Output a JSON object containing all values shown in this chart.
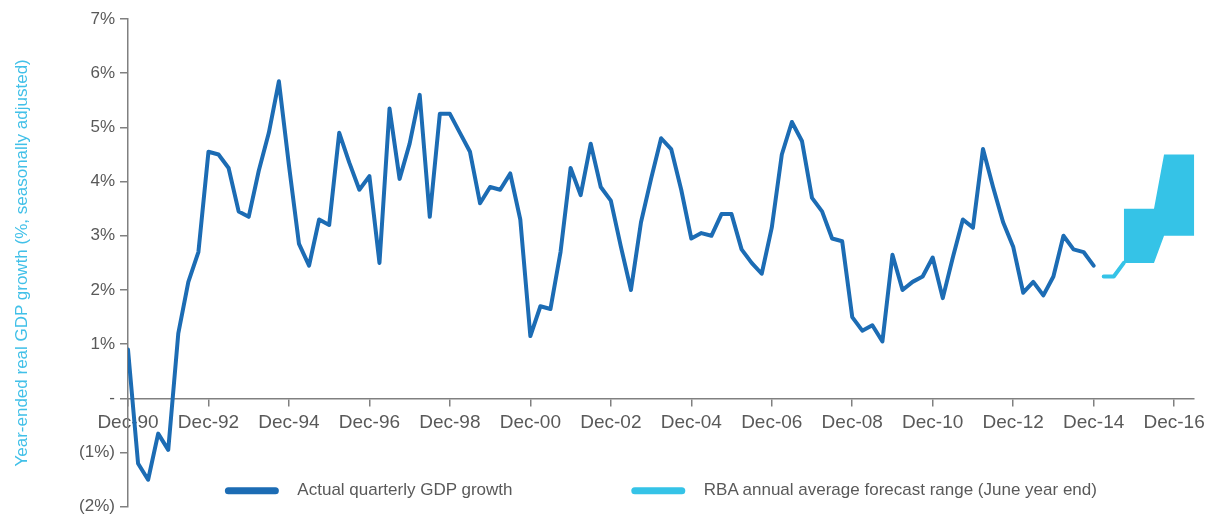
{
  "chart_data": {
    "type": "line",
    "ylabel": "Year-ended real GDP growth (%, seasonally adjusted)",
    "xlim": [
      "1990-12",
      "2017-06"
    ],
    "xticks": [
      {
        "value": "1990-12",
        "label": "Dec-90"
      },
      {
        "value": "1992-12",
        "label": "Dec-92"
      },
      {
        "value": "1994-12",
        "label": "Dec-94"
      },
      {
        "value": "1996-12",
        "label": "Dec-96"
      },
      {
        "value": "1998-12",
        "label": "Dec-98"
      },
      {
        "value": "2000-12",
        "label": "Dec-00"
      },
      {
        "value": "2002-12",
        "label": "Dec-02"
      },
      {
        "value": "2004-12",
        "label": "Dec-04"
      },
      {
        "value": "2006-12",
        "label": "Dec-06"
      },
      {
        "value": "2008-12",
        "label": "Dec-08"
      },
      {
        "value": "2010-12",
        "label": "Dec-10"
      },
      {
        "value": "2012-12",
        "label": "Dec-12"
      },
      {
        "value": "2014-12",
        "label": "Dec-14"
      },
      {
        "value": "2016-12",
        "label": "Dec-16"
      }
    ],
    "ylim": [
      -2,
      7
    ],
    "yticks": [
      {
        "value": -2,
        "label": "(2%)"
      },
      {
        "value": -1,
        "label": "(1%)"
      },
      {
        "value": 0,
        "label": "-"
      },
      {
        "value": 1,
        "label": "1%"
      },
      {
        "value": 2,
        "label": "2%"
      },
      {
        "value": 3,
        "label": "3%"
      },
      {
        "value": 4,
        "label": "4%"
      },
      {
        "value": 5,
        "label": "5%"
      },
      {
        "value": 6,
        "label": "6%"
      },
      {
        "value": 7,
        "label": "7%"
      }
    ],
    "grid": false,
    "legend": "bottom",
    "series": [
      {
        "name": "Actual quarterly GDP growth",
        "color": "#1c6cb4",
        "x": [
          "1990-12",
          "1991-03",
          "1991-06",
          "1991-09",
          "1991-12",
          "1992-03",
          "1992-06",
          "1992-09",
          "1992-12",
          "1993-03",
          "1993-06",
          "1993-09",
          "1993-12",
          "1994-03",
          "1994-06",
          "1994-09",
          "1994-12",
          "1995-03",
          "1995-06",
          "1995-09",
          "1995-12",
          "1996-03",
          "1996-06",
          "1996-09",
          "1996-12",
          "1997-03",
          "1997-06",
          "1997-09",
          "1997-12",
          "1998-03",
          "1998-06",
          "1998-09",
          "1998-12",
          "1999-03",
          "1999-06",
          "1999-09",
          "1999-12",
          "2000-03",
          "2000-06",
          "2000-09",
          "2000-12",
          "2001-03",
          "2001-06",
          "2001-09",
          "2001-12",
          "2002-03",
          "2002-06",
          "2002-09",
          "2002-12",
          "2003-03",
          "2003-06",
          "2003-09",
          "2003-12",
          "2004-03",
          "2004-06",
          "2004-09",
          "2004-12",
          "2005-03",
          "2005-06",
          "2005-09",
          "2005-12",
          "2006-03",
          "2006-06",
          "2006-09",
          "2006-12",
          "2007-03",
          "2007-06",
          "2007-09",
          "2007-12",
          "2008-03",
          "2008-06",
          "2008-09",
          "2008-12",
          "2009-03",
          "2009-06",
          "2009-09",
          "2009-12",
          "2010-03",
          "2010-06",
          "2010-09",
          "2010-12",
          "2011-03",
          "2011-06",
          "2011-09",
          "2011-12",
          "2012-03",
          "2012-06",
          "2012-09",
          "2012-12",
          "2013-03",
          "2013-06",
          "2013-09",
          "2013-12",
          "2014-03",
          "2014-06",
          "2014-09",
          "2014-12"
        ],
        "values": [
          0.9,
          -1.2,
          -1.5,
          -0.65,
          -0.95,
          1.2,
          2.15,
          2.7,
          4.55,
          4.5,
          4.25,
          3.45,
          3.35,
          4.2,
          4.9,
          5.85,
          4.3,
          2.85,
          2.45,
          3.3,
          3.2,
          4.9,
          4.35,
          3.85,
          4.1,
          2.5,
          5.35,
          4.05,
          4.7,
          5.6,
          3.35,
          5.25,
          5.25,
          4.9,
          4.55,
          3.6,
          3.9,
          3.85,
          4.15,
          3.3,
          1.15,
          1.7,
          1.65,
          2.7,
          4.25,
          3.75,
          4.7,
          3.9,
          3.65,
          2.8,
          2.0,
          3.25,
          4.05,
          4.8,
          4.6,
          3.85,
          2.95,
          3.05,
          3.0,
          3.4,
          3.4,
          2.75,
          2.5,
          2.3,
          3.15,
          4.5,
          5.1,
          4.75,
          3.7,
          3.45,
          2.95,
          2.9,
          1.5,
          1.25,
          1.35,
          1.05,
          2.65,
          2.0,
          2.15,
          2.25,
          2.6,
          1.85,
          2.6,
          3.3,
          3.15,
          4.6,
          3.9,
          3.25,
          2.8,
          1.95,
          2.15,
          1.9,
          2.25,
          3.0,
          2.75,
          2.7,
          2.45
        ]
      },
      {
        "name": "RBA annual average forecast range (June year end)",
        "color": "#35c3e7",
        "x": [
          "2015-03",
          "2015-06",
          "2015-09",
          "2015-12",
          "2016-03",
          "2016-06",
          "2016-09",
          "2016-12",
          "2017-03",
          "2017-06"
        ],
        "values": [
          2.25,
          2.25,
          2.5,
          null,
          null,
          null,
          null,
          null,
          null,
          null
        ],
        "lower": [
          null,
          null,
          2.5,
          2.5,
          2.5,
          2.5,
          3.0,
          3.0,
          3.0,
          3.0
        ],
        "upper": [
          null,
          null,
          3.5,
          3.5,
          3.5,
          3.5,
          4.5,
          4.5,
          4.5,
          4.5
        ]
      }
    ]
  }
}
